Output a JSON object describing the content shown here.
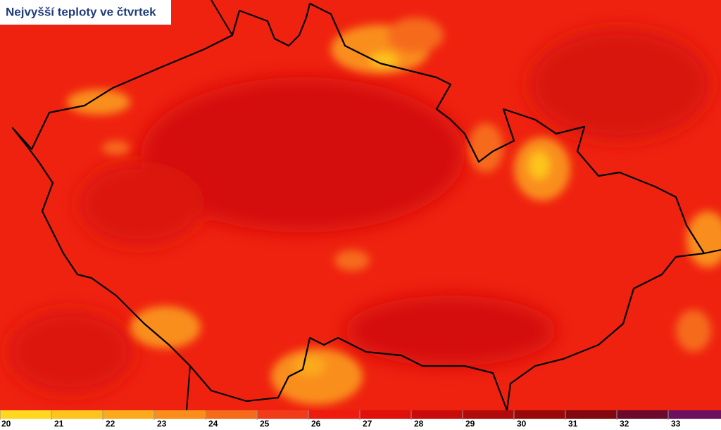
{
  "title": "Nejvyšší teploty ve čtvrtek",
  "legend": {
    "ticks": [
      20,
      21,
      22,
      23,
      24,
      25,
      26,
      27,
      28,
      29,
      30,
      31,
      32,
      33
    ],
    "colors": [
      "#ffd81f",
      "#fdc41c",
      "#fbaa1b",
      "#f98e1b",
      "#f66a1b",
      "#f23c19",
      "#ee1c0e",
      "#e0100b",
      "#c90c0b",
      "#b10a0a",
      "#990809",
      "#82070f",
      "#6b0a2c",
      "#6e1060"
    ]
  }
}
